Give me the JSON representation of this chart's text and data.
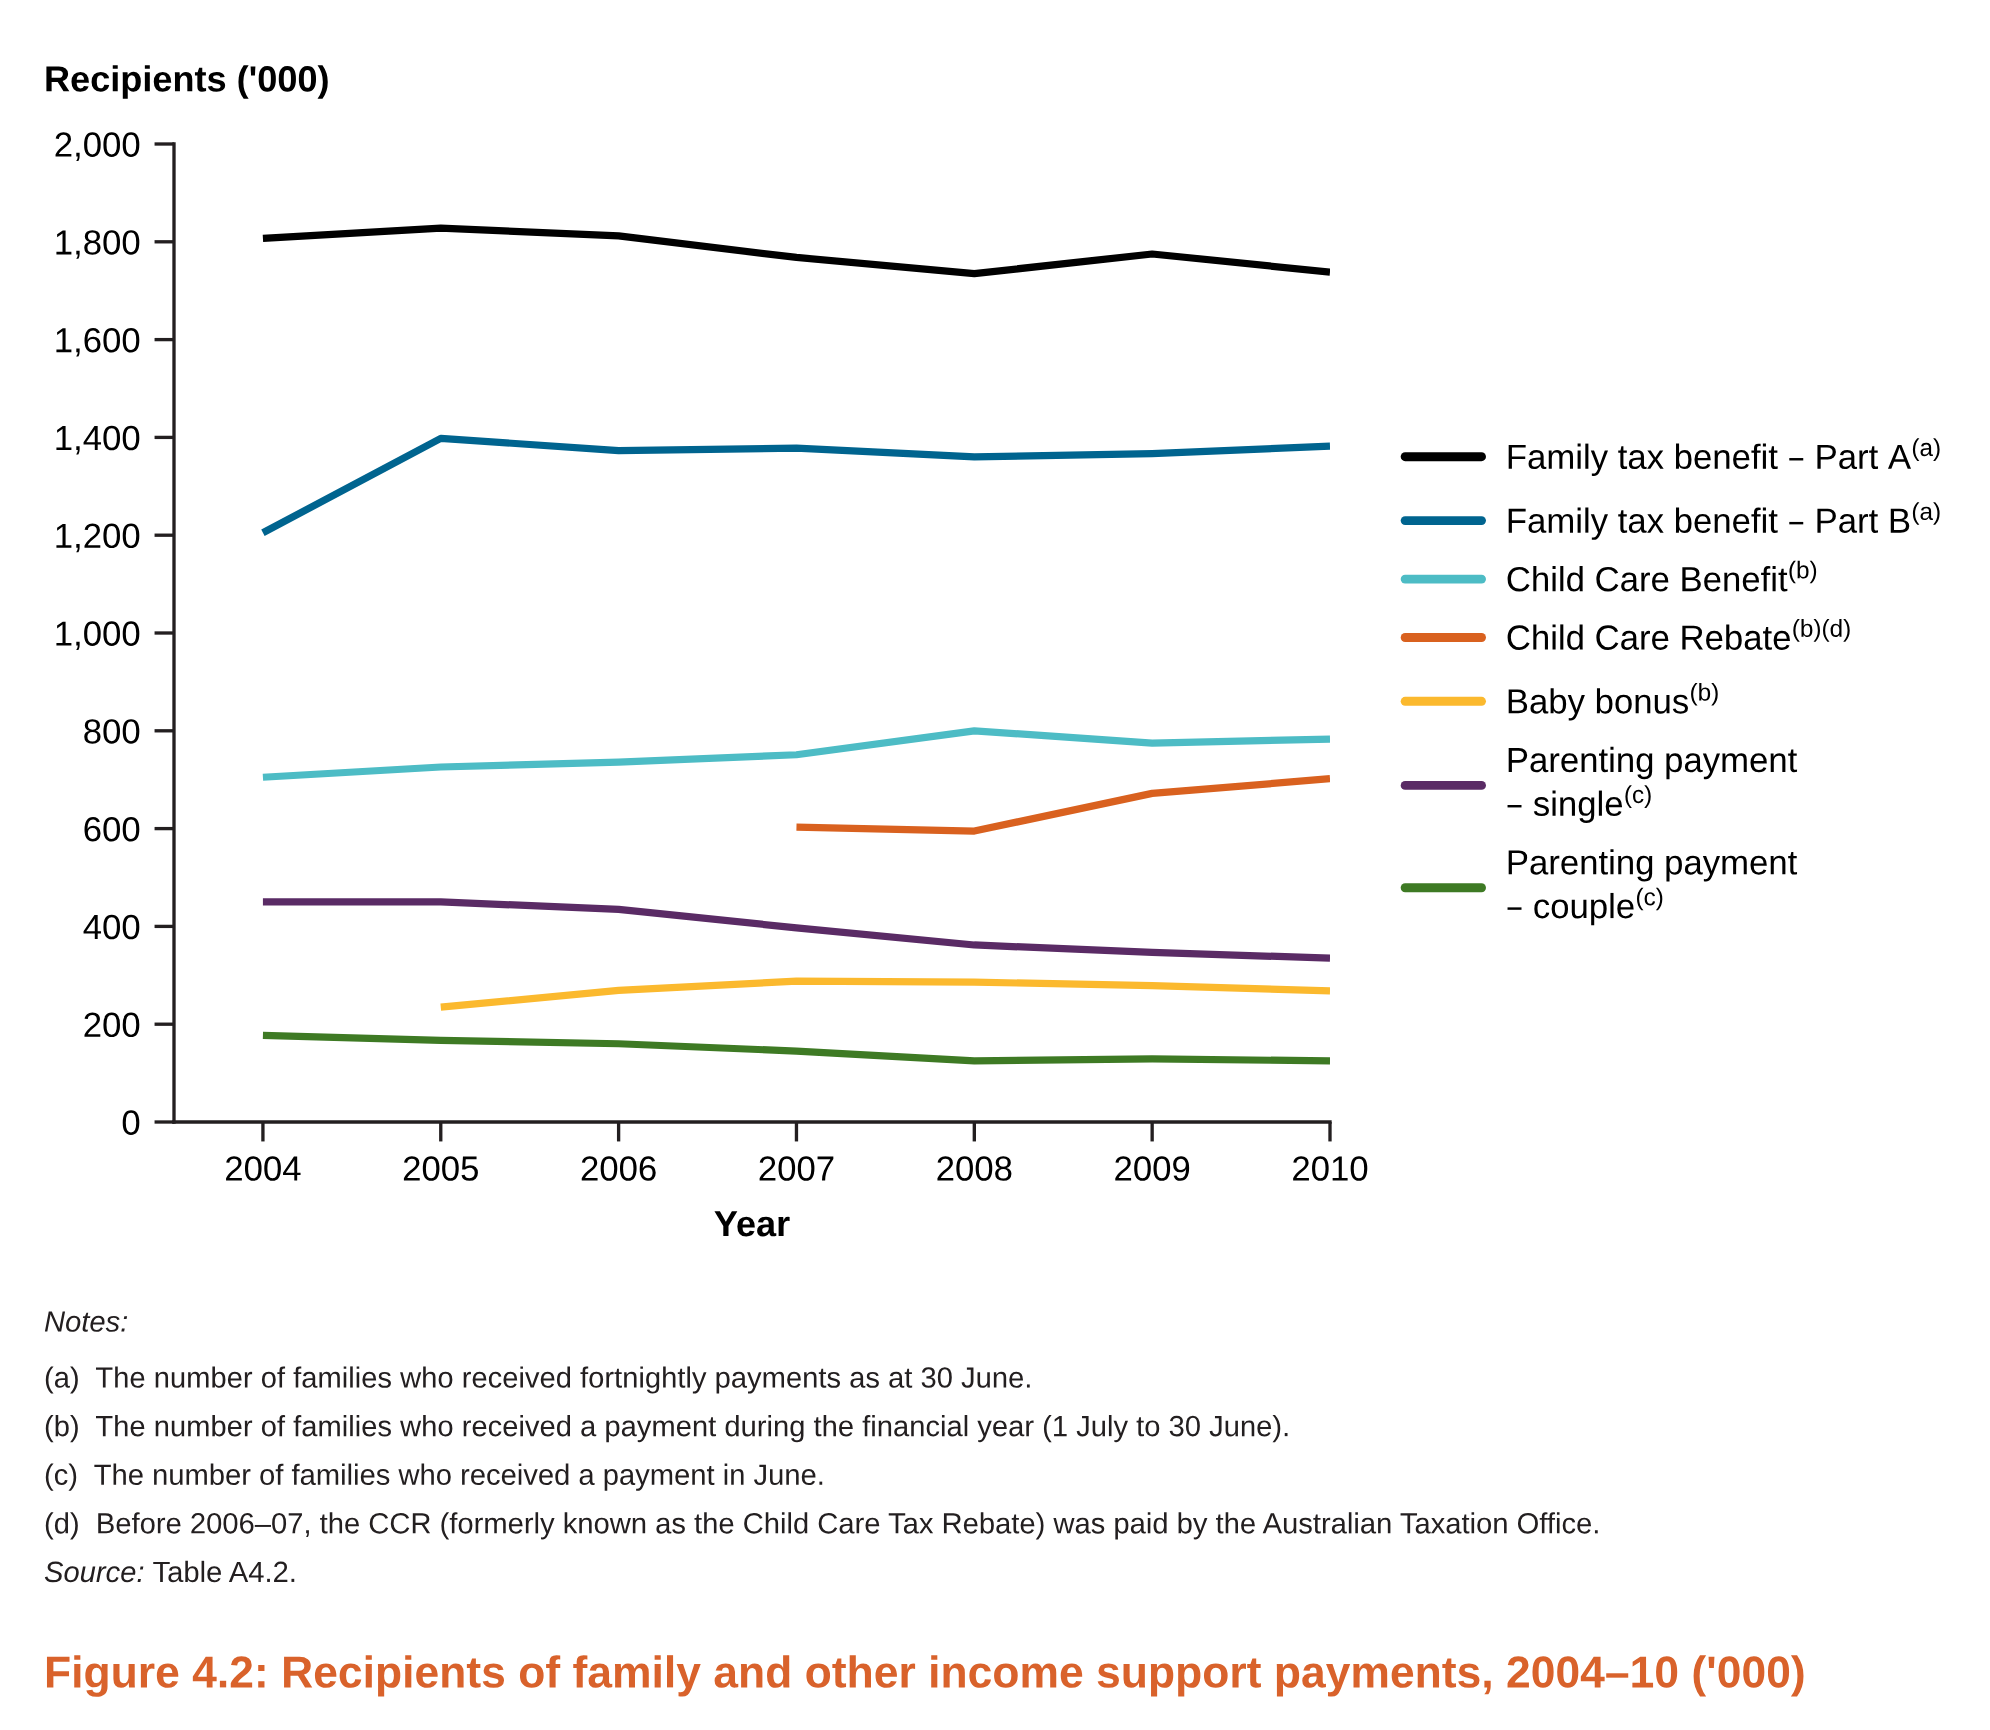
{
  "chart_data": {
    "type": "line",
    "title": "Figure 4.2: Recipients of family and other income support payments, 2004–10 ('000)",
    "xlabel": "Year",
    "ylabel": "Recipients ('000)",
    "x": [
      2004,
      2005,
      2006,
      2007,
      2008,
      2009,
      2010
    ],
    "xlim": [
      2003.5,
      2010
    ],
    "xticks": [
      2004,
      2005,
      2006,
      2007,
      2008,
      2009,
      2010
    ],
    "ylim": [
      0,
      2000
    ],
    "yticks": [
      0,
      200,
      400,
      600,
      800,
      {
        "value": 1000,
        "label": "1,000"
      },
      {
        "value": 1200,
        "label": "1,200"
      },
      {
        "value": 1400,
        "label": "1,400"
      },
      {
        "value": 1600,
        "label": "1,600"
      },
      {
        "value": 1800,
        "label": "1,800"
      },
      {
        "value": 2000,
        "label": "2,000"
      }
    ],
    "series": [
      {
        "name": "Family tax benefit – Part A$^{(a)}$",
        "color": "#000000",
        "values": [
          1807,
          1828,
          1812,
          1768,
          1735,
          1775,
          1738
        ]
      },
      {
        "name": "Family tax benefit – Part B$^{(a)}$",
        "color": "#00648f",
        "values": [
          1205,
          1398,
          1373,
          1378,
          1360,
          1367,
          1382
        ]
      },
      {
        "name": "Child Care Benefit$^{(b)}$",
        "color": "#4dbcc5",
        "values": [
          705,
          726,
          736,
          751,
          800,
          775,
          783
        ]
      },
      {
        "name": "Child Care Rebate$^{(b)(d)}$",
        "color": "#d9611f",
        "values": [
          null,
          null,
          null,
          603,
          595,
          672,
          702
        ]
      },
      {
        "name": "Baby bonus$^{(b)}$",
        "color": "#fbb92e",
        "values": [
          null,
          235,
          269,
          288,
          286,
          279,
          268
        ]
      },
      {
        "name": "Parenting payment\n– single$^{(c)}$",
        "color": "#5a2b65",
        "values": [
          450,
          450,
          435,
          397,
          362,
          347,
          335
        ]
      },
      {
        "name": "Parenting payment\n– couple$^{(c)}$",
        "color": "#3e7a24",
        "values": [
          177,
          167,
          160,
          145,
          125,
          129,
          125
        ]
      }
    ],
    "legend": "right",
    "grid": false,
    "line_style": "solid",
    "annotations": [
      "Notes:",
      "(a)  The number of families who received fortnightly payments as at 30 June.",
      "(b)  The number of families who received a payment during the financial year (1 July to 30 June).",
      "(c)  The number of families who received a payment in June.",
      "(d)  Before 2006–07, the CCR (formerly known as the Child Care Tax Rebate) was paid by the Australian Taxation Office.",
      "Source: Table A4.2."
    ]
  }
}
